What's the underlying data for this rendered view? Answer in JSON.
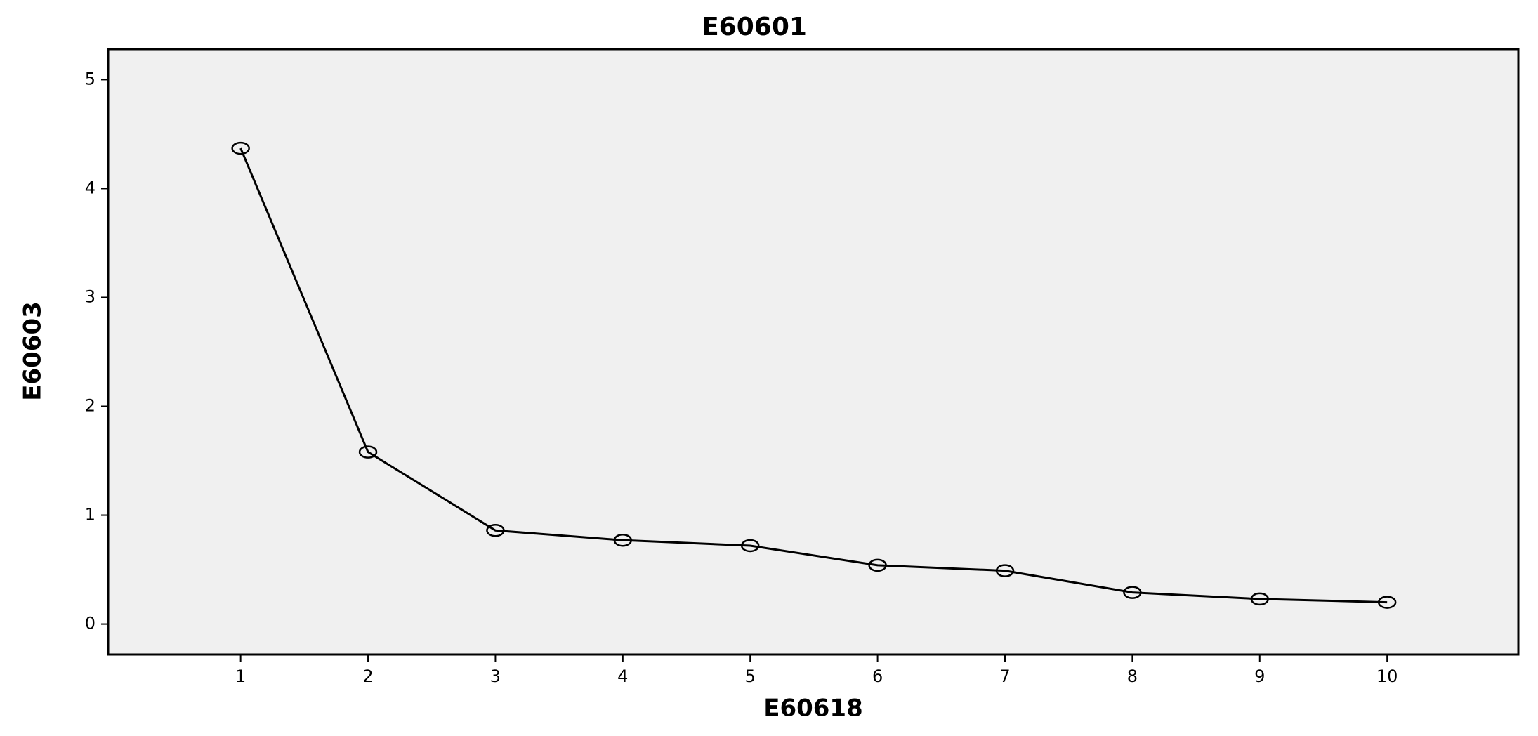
{
  "chart_data": {
    "type": "line",
    "title": "E60601",
    "x_label": "E60618",
    "y_label": "E60603",
    "x": [
      1,
      2,
      3,
      4,
      5,
      6,
      7,
      8,
      9,
      10
    ],
    "values": [
      4.37,
      1.58,
      0.86,
      0.77,
      0.72,
      0.54,
      0.49,
      0.29,
      0.23,
      0.2
    ],
    "color": "#000000",
    "marker": "circle",
    "xlim": [
      -0.04,
      11.03
    ],
    "ylim": [
      -0.28,
      5.28
    ],
    "xticks": [
      1,
      2,
      3,
      4,
      5,
      6,
      7,
      8,
      9,
      10
    ],
    "yticks": [
      0,
      1,
      2,
      3,
      4,
      5
    ]
  }
}
